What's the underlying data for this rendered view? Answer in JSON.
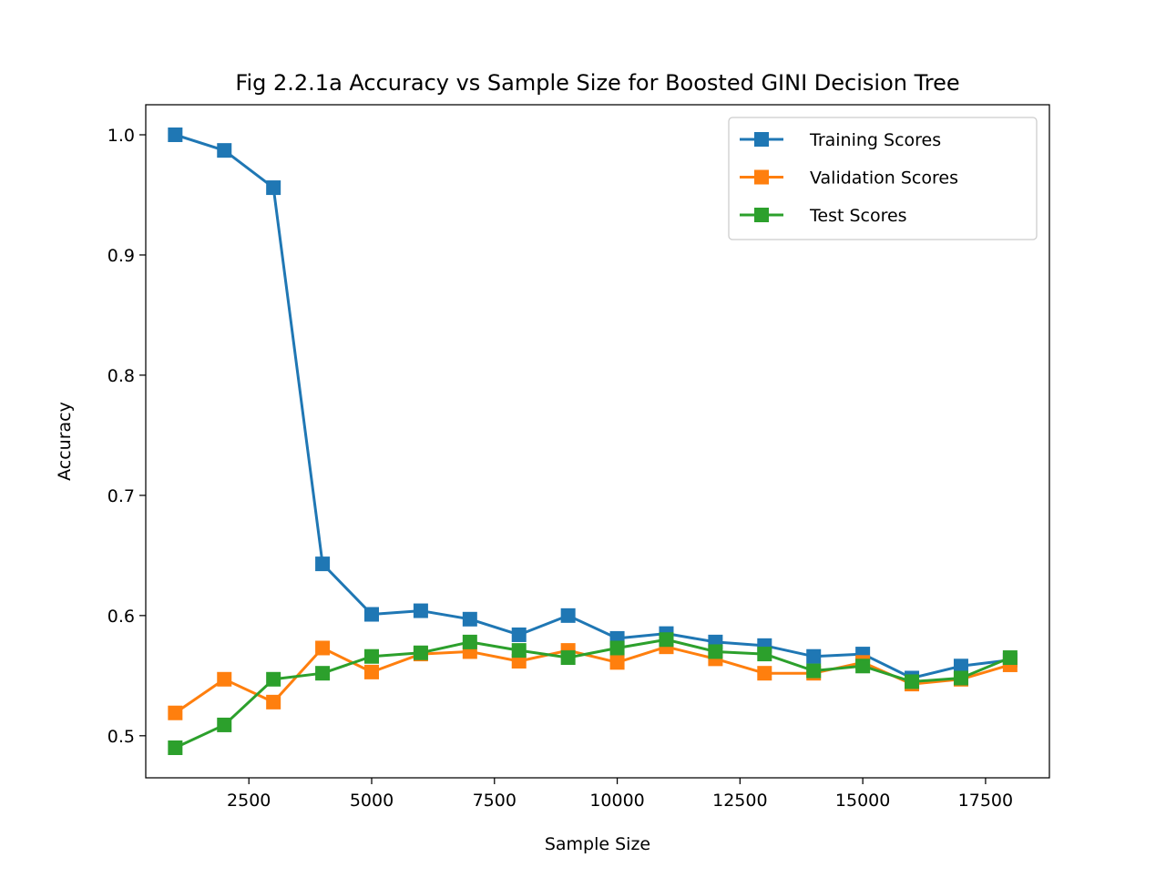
{
  "chart_data": {
    "type": "line",
    "title": "Fig 2.2.1a Accuracy vs Sample Size for Boosted GINI Decision Tree",
    "xlabel": "Sample Size",
    "ylabel": "Accuracy",
    "xlim": [
      400,
      18800
    ],
    "ylim": [
      0.465,
      1.025
    ],
    "xticks": [
      2500,
      5000,
      7500,
      10000,
      12500,
      15000,
      17500
    ],
    "xtick_labels": [
      "2500",
      "5000",
      "7500",
      "10000",
      "12500",
      "15000",
      "17500"
    ],
    "yticks": [
      0.5,
      0.6,
      0.7,
      0.8,
      0.9,
      1.0
    ],
    "ytick_labels": [
      "0.5",
      "0.6",
      "0.7",
      "0.8",
      "0.9",
      "1.0"
    ],
    "grid": false,
    "legend_position": "top-right",
    "marker": "square",
    "x": [
      1000,
      2000,
      3000,
      4000,
      5000,
      6000,
      7000,
      8000,
      9000,
      10000,
      11000,
      12000,
      13000,
      14000,
      15000,
      16000,
      17000,
      18000
    ],
    "series": [
      {
        "name": "Training Scores",
        "color": "#1f77b4",
        "values": [
          1.0,
          0.987,
          0.956,
          0.643,
          0.601,
          0.604,
          0.597,
          0.584,
          0.6,
          0.581,
          0.585,
          0.578,
          0.575,
          0.566,
          0.568,
          0.548,
          0.558,
          0.563
        ]
      },
      {
        "name": "Validation Scores",
        "color": "#ff7f0e",
        "values": [
          0.519,
          0.547,
          0.528,
          0.573,
          0.553,
          0.568,
          0.57,
          0.562,
          0.571,
          0.561,
          0.574,
          0.564,
          0.552,
          0.552,
          0.561,
          0.543,
          0.547,
          0.559
        ]
      },
      {
        "name": "Test Scores",
        "color": "#2ca02c",
        "values": [
          0.49,
          0.509,
          0.547,
          0.552,
          0.566,
          0.569,
          0.578,
          0.571,
          0.565,
          0.573,
          0.58,
          0.57,
          0.568,
          0.554,
          0.558,
          0.545,
          0.548,
          0.565
        ]
      }
    ]
  }
}
